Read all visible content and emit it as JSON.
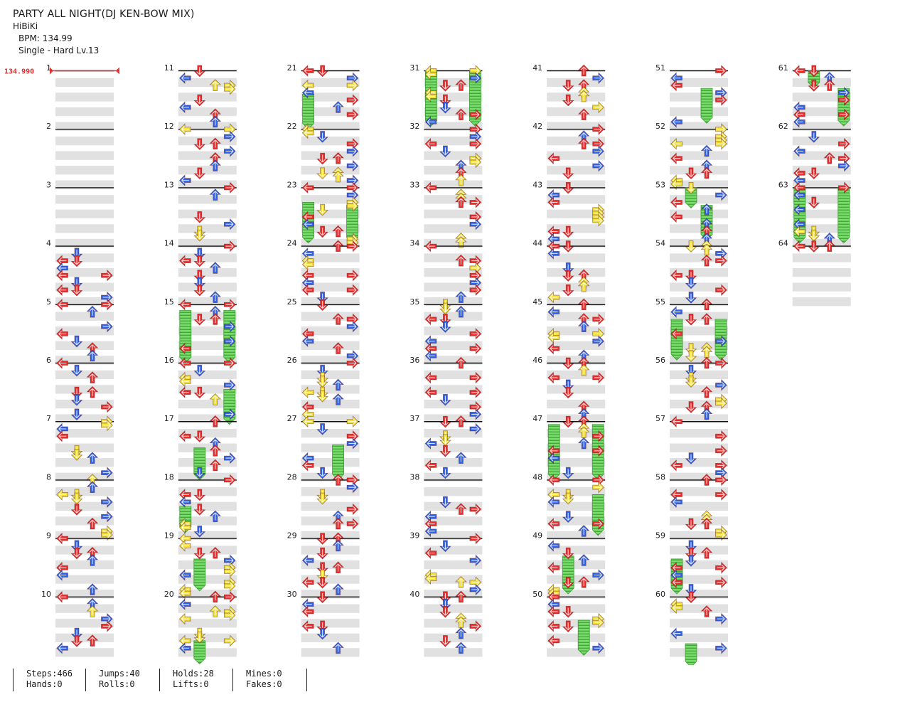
{
  "song": {
    "title": "PARTY ALL NIGHT(DJ KEN-BOW MIX)",
    "artist": "HiBiKi",
    "bpm_label": "BPM: 134.99",
    "difficulty_label": "Single - Hard  Lv.13"
  },
  "bpm_marker": {
    "value": "134.990",
    "measure": 1
  },
  "measures": {
    "count": 64,
    "per_column": 10,
    "labels": [
      "1",
      "2",
      "3",
      "4",
      "5",
      "6",
      "7",
      "8",
      "9",
      "10",
      "11",
      "12",
      "13",
      "14",
      "15",
      "16",
      "17",
      "18",
      "19",
      "20",
      "21",
      "22",
      "23",
      "24",
      "25",
      "26",
      "27",
      "28",
      "29",
      "30",
      "31",
      "32",
      "33",
      "34",
      "35",
      "36",
      "37",
      "38",
      "39",
      "40",
      "41",
      "42",
      "43",
      "44",
      "45",
      "46",
      "47",
      "48",
      "49",
      "50",
      "51",
      "52",
      "53",
      "54",
      "55",
      "56",
      "57",
      "58",
      "59",
      "60",
      "61",
      "62",
      "63",
      "64"
    ]
  },
  "lanes": [
    "left",
    "down",
    "up",
    "right"
  ],
  "note_colors": {
    "quarter": "#ee2b2b",
    "eighth": "#2f62e8",
    "sixteenth": "#f2e034",
    "hold": "#7bdc6e"
  },
  "icons": {
    "tap": "arrow-note-icon",
    "hold": "freeze-arrow-icon",
    "bpm": "bpm-change-icon"
  },
  "stats": {
    "steps": "Steps:466",
    "hands": "Hands:0",
    "jumps": "Jumps:40",
    "rolls": "Rolls:0",
    "holds": "Holds:28",
    "lifts": "Lifts:0",
    "mines": "Mines:0",
    "fakes": "Fakes:0"
  }
}
